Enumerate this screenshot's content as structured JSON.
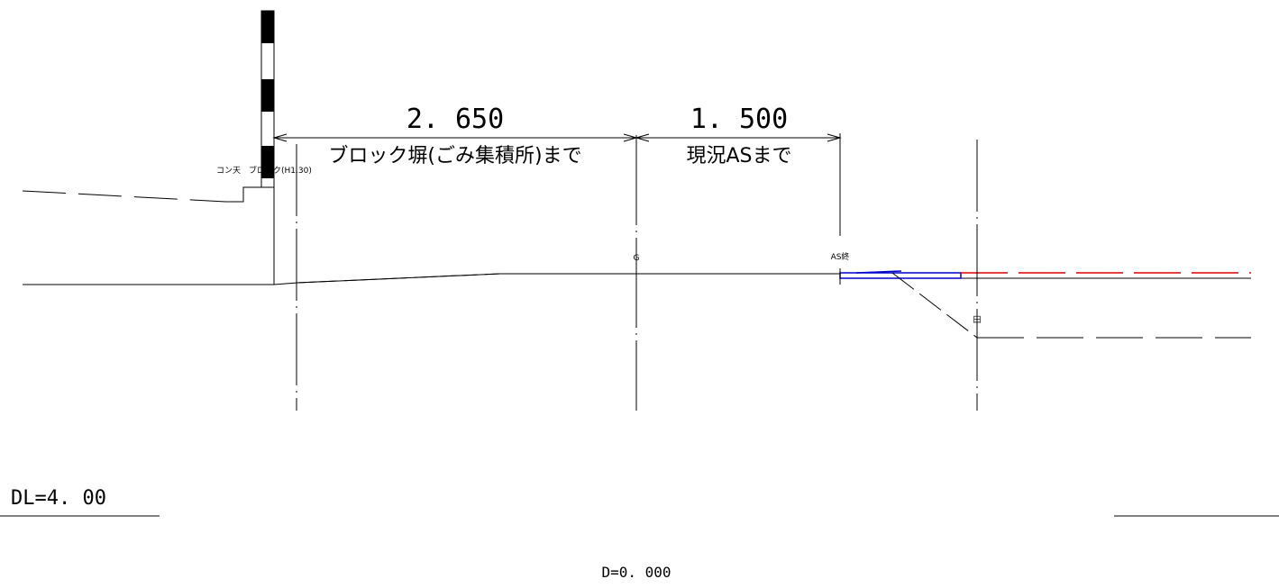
{
  "dimensions": [
    {
      "value": "2. 650",
      "label": "ブロック塀(ごみ集積所)まで"
    },
    {
      "value": "1. 500",
      "label": "現況ASまで"
    }
  ],
  "annotations": {
    "wall_label": "コン天　ブロック(H1.30)",
    "center_mark": "G",
    "as_end": "AS終",
    "drain_mark": "田"
  },
  "datum": {
    "label": "DL=4. 00"
  },
  "offset": {
    "label": "D=0. 000"
  },
  "colors": {
    "line": "#000000",
    "pavement": "#0000cc",
    "boundary": "#dd0000"
  }
}
